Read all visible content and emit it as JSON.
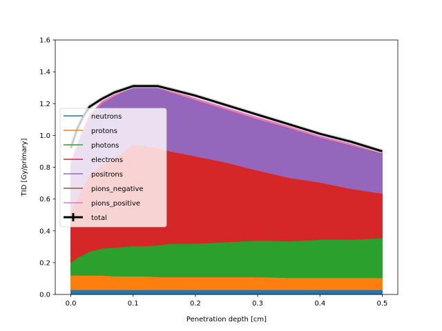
{
  "chart_data": {
    "type": "area",
    "title": "",
    "xlabel": "Penetration depth [cm]",
    "ylabel": "TID [Gy/primary]",
    "xlim": [
      -0.025,
      0.525
    ],
    "ylim": [
      0.0,
      1.6
    ],
    "x_ticks": [
      0.0,
      0.1,
      0.2,
      0.3,
      0.4,
      0.5
    ],
    "x_tick_labels": [
      "0.0",
      "0.1",
      "0.2",
      "0.3",
      "0.4",
      "0.5"
    ],
    "y_ticks": [
      0.0,
      0.2,
      0.4,
      0.6,
      0.8,
      1.0,
      1.2,
      1.4,
      1.6
    ],
    "y_tick_labels": [
      "0.0",
      "0.2",
      "0.4",
      "0.6",
      "0.8",
      "1.0",
      "1.2",
      "1.4",
      "1.6"
    ],
    "grid": false,
    "legend_position": "center-left",
    "stacked": true,
    "x": [
      0.0,
      0.01,
      0.02,
      0.03,
      0.05,
      0.07,
      0.1,
      0.12,
      0.14,
      0.16,
      0.2,
      0.25,
      0.3,
      0.35,
      0.4,
      0.45,
      0.5
    ],
    "series": [
      {
        "name": "neutrons",
        "color": "#1f77b4",
        "values": [
          0.03,
          0.03,
          0.03,
          0.03,
          0.03,
          0.03,
          0.03,
          0.03,
          0.03,
          0.03,
          0.03,
          0.03,
          0.03,
          0.03,
          0.03,
          0.03,
          0.03
        ]
      },
      {
        "name": "protons",
        "color": "#ff7f0e",
        "values": [
          0.09,
          0.09,
          0.09,
          0.09,
          0.09,
          0.085,
          0.085,
          0.085,
          0.08,
          0.08,
          0.08,
          0.08,
          0.08,
          0.075,
          0.075,
          0.075,
          0.075
        ]
      },
      {
        "name": "photons",
        "color": "#2ca02c",
        "values": [
          0.08,
          0.11,
          0.13,
          0.15,
          0.17,
          0.18,
          0.19,
          0.19,
          0.2,
          0.21,
          0.21,
          0.22,
          0.23,
          0.23,
          0.24,
          0.24,
          0.25
        ]
      },
      {
        "name": "electrons",
        "color": "#d62728",
        "values": [
          0.32,
          0.37,
          0.43,
          0.48,
          0.53,
          0.56,
          0.64,
          0.63,
          0.61,
          0.58,
          0.55,
          0.5,
          0.44,
          0.4,
          0.36,
          0.32,
          0.28
        ]
      },
      {
        "name": "positrons",
        "color": "#9467bd",
        "values": [
          0.3,
          0.33,
          0.35,
          0.37,
          0.38,
          0.39,
          0.36,
          0.37,
          0.38,
          0.37,
          0.35,
          0.33,
          0.32,
          0.31,
          0.28,
          0.27,
          0.25
        ]
      },
      {
        "name": "pions_negative",
        "color": "#8c564b",
        "values": [
          0.002,
          0.002,
          0.002,
          0.002,
          0.002,
          0.002,
          0.002,
          0.002,
          0.002,
          0.002,
          0.002,
          0.002,
          0.002,
          0.002,
          0.002,
          0.002,
          0.002
        ]
      },
      {
        "name": "pions_positive",
        "color": "#e377c2",
        "values": [
          0.01,
          0.01,
          0.01,
          0.01,
          0.01,
          0.01,
          0.01,
          0.01,
          0.01,
          0.01,
          0.01,
          0.01,
          0.01,
          0.01,
          0.01,
          0.01,
          0.01
        ]
      }
    ],
    "total": {
      "name": "total",
      "color": "#000000",
      "values": [
        0.92,
        1.04,
        1.12,
        1.18,
        1.23,
        1.27,
        1.31,
        1.31,
        1.31,
        1.29,
        1.25,
        1.19,
        1.13,
        1.07,
        1.01,
        0.96,
        0.9
      ]
    }
  }
}
